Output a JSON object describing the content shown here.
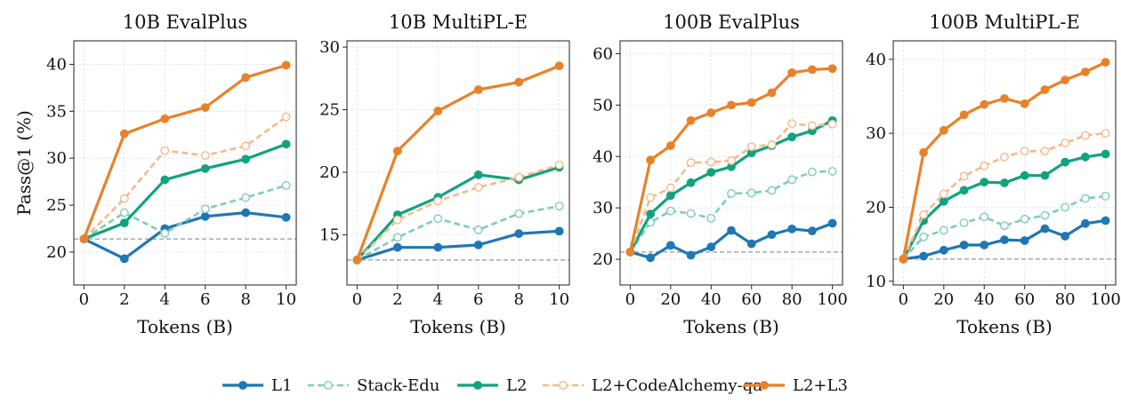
{
  "figure": {
    "ylabel": "Pass@1 (%)",
    "xlabel": "Tokens (B)"
  },
  "legend": {
    "placement": "bottom-center",
    "items": [
      {
        "name": "L1",
        "color": "#1f77b4",
        "dashed": false,
        "filled": true
      },
      {
        "name": "Stack-Edu",
        "color": "#7fcdbb",
        "dashed": true,
        "filled": false
      },
      {
        "name": "L2",
        "color": "#11a37f",
        "dashed": false,
        "filled": true
      },
      {
        "name": "L2+CodeAlchemy-qa",
        "color": "#f6b98a",
        "dashed": true,
        "filled": false
      },
      {
        "name": "L2+L3",
        "color": "#e8822a",
        "dashed": false,
        "filled": true
      }
    ]
  },
  "chart_data": [
    {
      "type": "line",
      "title": "10B EvalPlus",
      "xlabel": "Tokens (B)",
      "ylabel": "Pass@1 (%)",
      "x": [
        0,
        2,
        4,
        6,
        8,
        10
      ],
      "xticks": [
        0,
        2,
        4,
        6,
        8,
        10
      ],
      "xlim": [
        -0.5,
        10.5
      ],
      "yticks": [
        20,
        25,
        30,
        35,
        40
      ],
      "ylim": [
        16.5,
        42.5
      ],
      "baseline": 21.4,
      "grid": true,
      "series": [
        {
          "name": "L1",
          "values": [
            21.4,
            19.3,
            22.5,
            23.8,
            24.2,
            23.7
          ]
        },
        {
          "name": "Stack-Edu",
          "values": [
            21.4,
            24.2,
            22.0,
            24.6,
            25.8,
            27.1
          ]
        },
        {
          "name": "L2",
          "values": [
            21.4,
            23.1,
            27.7,
            28.9,
            29.9,
            31.5
          ]
        },
        {
          "name": "L2+CodeAlchemy-qa",
          "values": [
            21.4,
            25.7,
            30.8,
            30.3,
            31.3,
            34.4
          ]
        },
        {
          "name": "L2+L3",
          "values": [
            21.4,
            32.6,
            34.2,
            35.4,
            38.6,
            39.9
          ]
        }
      ]
    },
    {
      "type": "line",
      "title": "10B MultiPL-E",
      "xlabel": "Tokens (B)",
      "ylabel": "",
      "x": [
        0,
        2,
        4,
        6,
        8,
        10
      ],
      "xticks": [
        0,
        2,
        4,
        6,
        8,
        10
      ],
      "xlim": [
        -0.5,
        10.5
      ],
      "yticks": [
        15,
        20,
        25,
        30
      ],
      "ylim": [
        11.0,
        30.5
      ],
      "baseline": 13.0,
      "grid": true,
      "series": [
        {
          "name": "L1",
          "values": [
            13.0,
            14.0,
            14.0,
            14.2,
            15.1,
            15.3
          ]
        },
        {
          "name": "Stack-Edu",
          "values": [
            13.0,
            14.8,
            16.3,
            15.4,
            16.7,
            17.3
          ]
        },
        {
          "name": "L2",
          "values": [
            13.0,
            16.6,
            18.0,
            19.8,
            19.4,
            20.4
          ]
        },
        {
          "name": "L2+CodeAlchemy-qa",
          "values": [
            13.0,
            16.2,
            17.7,
            18.8,
            19.6,
            20.6
          ]
        },
        {
          "name": "L2+L3",
          "values": [
            13.0,
            21.7,
            24.9,
            26.6,
            27.2,
            28.5
          ]
        }
      ]
    },
    {
      "type": "line",
      "title": "100B EvalPlus",
      "xlabel": "Tokens (B)",
      "ylabel": "",
      "x": [
        0,
        10,
        20,
        30,
        40,
        50,
        60,
        70,
        80,
        90,
        100
      ],
      "xticks": [
        0,
        20,
        40,
        60,
        80,
        100
      ],
      "xlim": [
        -5,
        105
      ],
      "yticks": [
        20,
        30,
        40,
        50,
        60
      ],
      "ylim": [
        15.0,
        62.5
      ],
      "baseline": 21.4,
      "grid": true,
      "series": [
        {
          "name": "L1",
          "values": [
            21.4,
            20.3,
            22.7,
            20.8,
            22.4,
            25.6,
            23.0,
            24.8,
            25.9,
            25.5,
            27.0
          ]
        },
        {
          "name": "Stack-Edu",
          "values": [
            21.4,
            27.2,
            29.4,
            28.9,
            28.0,
            32.8,
            32.9,
            33.4,
            35.5,
            37.0,
            37.1
          ]
        },
        {
          "name": "L2",
          "values": [
            21.4,
            28.8,
            32.4,
            34.9,
            36.9,
            38.0,
            40.7,
            42.1,
            43.8,
            45.0,
            47.0
          ]
        },
        {
          "name": "L2+CodeAlchemy-qa",
          "values": [
            21.4,
            32.0,
            33.9,
            38.8,
            38.9,
            39.2,
            41.9,
            42.3,
            46.4,
            46.0,
            46.3
          ]
        },
        {
          "name": "L2+L3",
          "values": [
            21.4,
            39.3,
            42.1,
            47.0,
            48.5,
            50.0,
            50.5,
            52.4,
            56.3,
            56.9,
            57.1
          ]
        }
      ]
    },
    {
      "type": "line",
      "title": "100B MultiPL-E",
      "xlabel": "Tokens (B)",
      "ylabel": "",
      "x": [
        0,
        10,
        20,
        30,
        40,
        50,
        60,
        70,
        80,
        90,
        100
      ],
      "xticks": [
        0,
        20,
        40,
        60,
        80,
        100
      ],
      "xlim": [
        -5,
        105
      ],
      "yticks": [
        10,
        20,
        30,
        40
      ],
      "ylim": [
        9.5,
        42.5
      ],
      "baseline": 13.0,
      "grid": true,
      "series": [
        {
          "name": "L1",
          "values": [
            13.0,
            13.4,
            14.2,
            14.9,
            14.9,
            15.6,
            15.5,
            17.1,
            16.1,
            17.8,
            18.2
          ]
        },
        {
          "name": "Stack-Edu",
          "values": [
            13.0,
            16.0,
            16.9,
            17.9,
            18.7,
            17.5,
            18.4,
            18.9,
            20.0,
            21.2,
            21.5
          ]
        },
        {
          "name": "L2",
          "values": [
            13.0,
            18.2,
            20.8,
            22.3,
            23.4,
            23.3,
            24.3,
            24.3,
            26.1,
            26.8,
            27.2
          ]
        },
        {
          "name": "L2+CodeAlchemy-qa",
          "values": [
            13.0,
            19.0,
            21.8,
            24.2,
            25.6,
            26.8,
            27.6,
            27.6,
            28.7,
            29.7,
            30.0
          ]
        },
        {
          "name": "L2+L3",
          "values": [
            13.0,
            27.4,
            30.4,
            32.5,
            33.9,
            34.7,
            34.0,
            35.9,
            37.2,
            38.3,
            39.6
          ]
        }
      ]
    }
  ]
}
